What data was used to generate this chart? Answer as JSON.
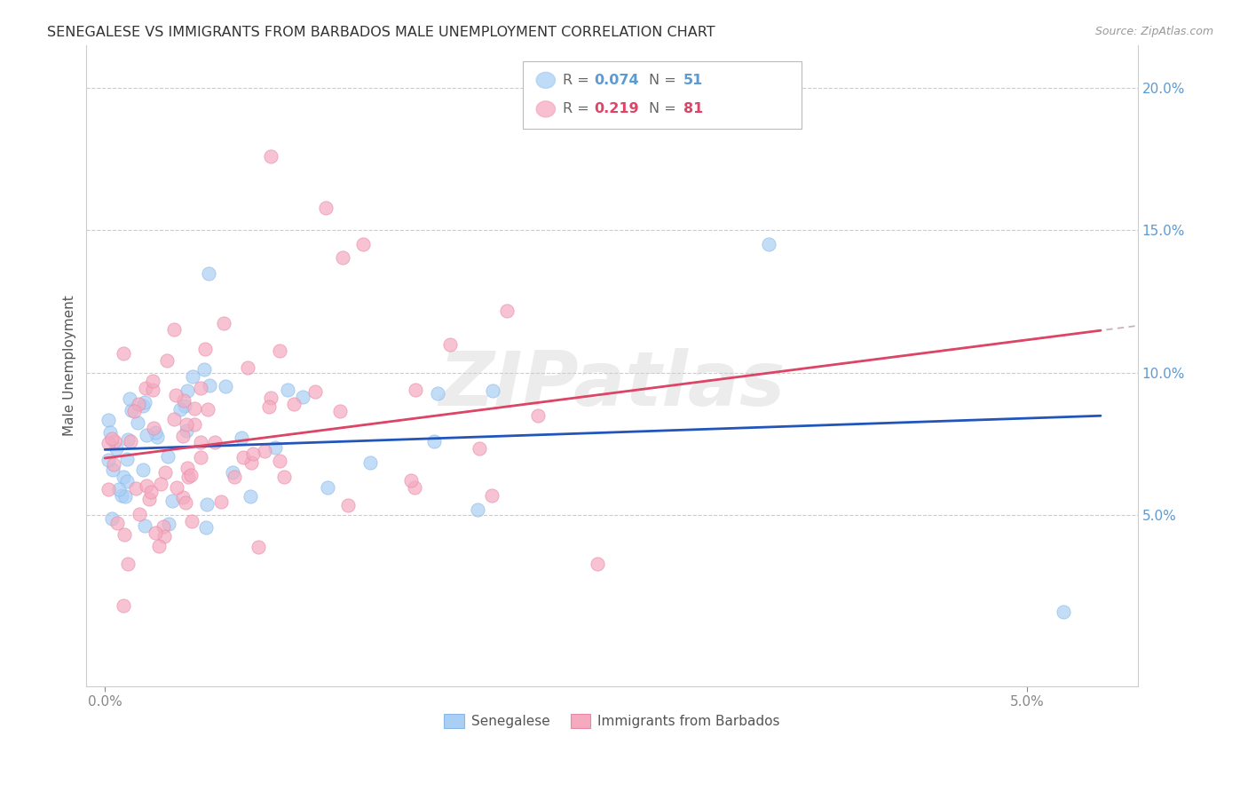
{
  "title": "SENEGALESE VS IMMIGRANTS FROM BARBADOS MALE UNEMPLOYMENT CORRELATION CHART",
  "source": "Source: ZipAtlas.com",
  "ylabel": "Male Unemployment",
  "series1_label": "Senegalese",
  "series2_label": "Immigrants from Barbados",
  "series1_color": "#aacff5",
  "series2_color": "#f5aabf",
  "series1_edge": "#88b8e8",
  "series2_edge": "#e888a8",
  "trend1_color": "#2255bb",
  "trend2_color": "#dd4466",
  "dash_color": "#c8a0b0",
  "watermark_text": "ZIPatlas",
  "watermark_color": "#d0d0d0",
  "legend_box_color": "#cccccc",
  "R1": 0.074,
  "N1": 51,
  "R2": 0.219,
  "N2": 81,
  "legend_R1_color": "#5b9bd5",
  "legend_N1_color": "#5b9bd5",
  "legend_R2_color": "#dd4466",
  "legend_N2_color": "#dd4466",
  "xlim": [
    -0.001,
    0.056
  ],
  "ylim": [
    -0.01,
    0.215
  ],
  "x_ticks": [
    0.0,
    0.05
  ],
  "x_tick_labels": [
    "0.0%",
    "5.0%"
  ],
  "y_ticks": [
    0.05,
    0.1,
    0.15,
    0.2
  ],
  "y_tick_labels": [
    "5.0%",
    "10.0%",
    "15.0%",
    "20.0%"
  ],
  "grid_color": "#cccccc",
  "trend1_b": 0.073,
  "trend1_slope": 0.22,
  "trend2_b": 0.07,
  "trend2_slope": 0.83,
  "scatter_seed1": 42,
  "scatter_seed2": 7
}
